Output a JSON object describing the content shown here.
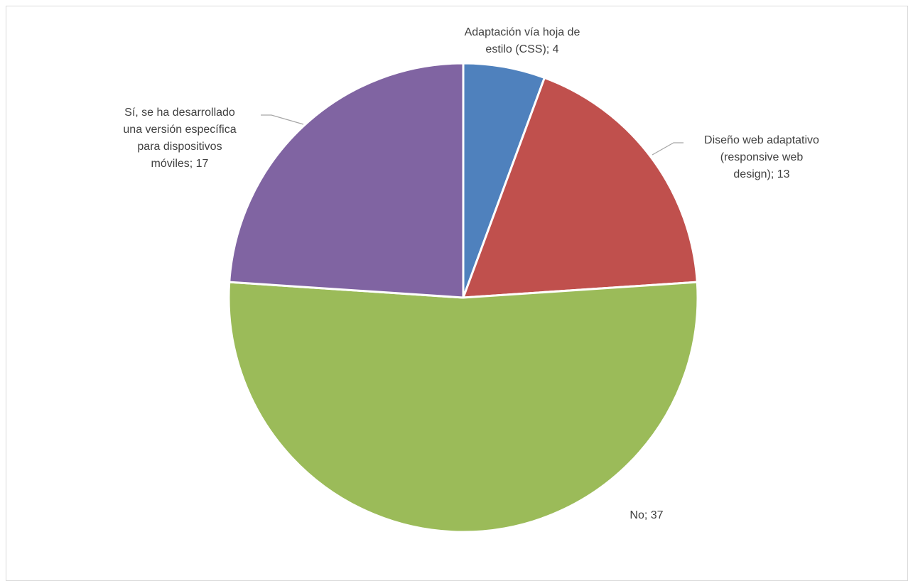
{
  "chart_data": {
    "type": "pie",
    "title": "",
    "slices": [
      {
        "label_lines": [
          "Adaptación vía hoja de",
          "estilo (CSS); 4"
        ],
        "value": 4,
        "color": "#4f81bd"
      },
      {
        "label_lines": [
          "Diseño web adaptativo",
          "(responsive web",
          "design); 13"
        ],
        "value": 13,
        "color": "#c0504d"
      },
      {
        "label_lines": [
          "No; 37"
        ],
        "value": 37,
        "color": "#9bbb59"
      },
      {
        "label_lines": [
          "Sí, se ha desarrollado",
          "una versión específica",
          "para dispositivos",
          "móviles; 17"
        ],
        "value": 17,
        "color": "#8064a2"
      }
    ],
    "start_angle": "top (12 o'clock)",
    "direction": "clockwise",
    "legend": "none",
    "data_labels": "category; value",
    "leader_line_color": "#a6a6a6"
  }
}
